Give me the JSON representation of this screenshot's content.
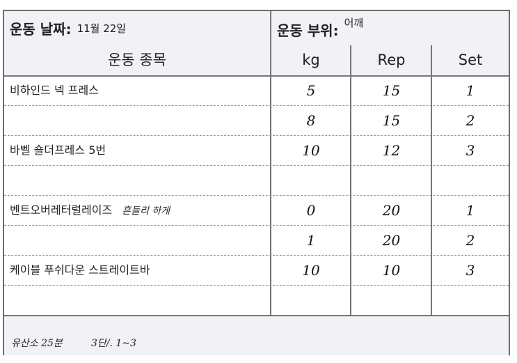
{
  "header": {
    "date_label": "운동 날짜:",
    "date_value": "11월 22일",
    "part_label": "운동 부위:",
    "part_value": "어깨"
  },
  "columns": {
    "exercise": "운동 종목",
    "kg": "kg",
    "rep": "Rep",
    "set": "Set"
  },
  "rows": [
    {
      "name": "비하인드 넥 프레스",
      "note": "",
      "kg": "5",
      "rep": "15",
      "set": "1"
    },
    {
      "name": "",
      "note": "",
      "kg": "8",
      "rep": "15",
      "set": "2"
    },
    {
      "name": "바벨 숄더프레스 5번",
      "note": "",
      "kg": "10",
      "rep": "12",
      "set": "3"
    },
    {
      "name": "",
      "note": "",
      "kg": "",
      "rep": "",
      "set": ""
    },
    {
      "name": "벤트오버레터럴레이즈",
      "note": "흔들리 하게",
      "kg": "0",
      "rep": "20",
      "set": "1"
    },
    {
      "name": "",
      "note": "",
      "kg": "1",
      "rep": "20",
      "set": "2"
    },
    {
      "name": "케이블 푸쉬다운 스트레이트바",
      "note": "",
      "kg": "10",
      "rep": "10",
      "set": "3"
    },
    {
      "name": "",
      "note": "",
      "kg": "",
      "rep": "",
      "set": ""
    }
  ],
  "footer": {
    "note1": "유산소 25분",
    "note2": "3단/. 1~3"
  }
}
